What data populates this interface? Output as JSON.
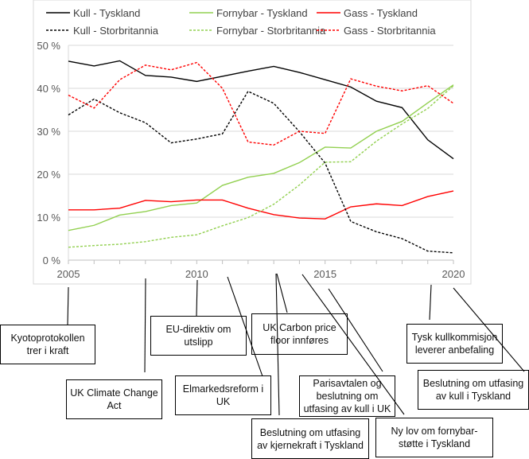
{
  "chart_data": {
    "type": "line",
    "x": [
      2005,
      2006,
      2007,
      2008,
      2009,
      2010,
      2011,
      2012,
      2013,
      2014,
      2015,
      2016,
      2017,
      2018,
      2019,
      2020
    ],
    "xticks": [
      "2005",
      "2010",
      "2015",
      "2020"
    ],
    "yticks": [
      "0 %",
      "10 %",
      "20 %",
      "30 %",
      "40 %",
      "50 %"
    ],
    "ylim": [
      0,
      50
    ],
    "grid": true,
    "legend": "top",
    "series": [
      {
        "name": "Kull - Tyskland",
        "color": "#000000",
        "dash": false,
        "values": [
          46.3,
          45.2,
          46.4,
          43.0,
          42.6,
          41.6,
          42.8,
          44.0,
          45.1,
          43.7,
          42.0,
          40.3,
          37.0,
          35.5,
          28.0,
          23.6
        ]
      },
      {
        "name": "Fornybar - Tyskland",
        "color": "#92d050",
        "dash": false,
        "values": [
          6.9,
          8.1,
          10.5,
          11.3,
          12.7,
          13.3,
          17.4,
          19.3,
          20.2,
          22.7,
          26.3,
          26.1,
          30.0,
          32.3,
          36.6,
          40.8
        ]
      },
      {
        "name": "Gass - Tyskland",
        "color": "#ff0000",
        "dash": false,
        "values": [
          11.7,
          11.7,
          12.1,
          13.9,
          13.6,
          14.0,
          14.0,
          12.1,
          10.6,
          9.8,
          9.6,
          12.4,
          13.1,
          12.7,
          14.8,
          16.1
        ]
      },
      {
        "name": "Kull - Storbritannia",
        "color": "#000000",
        "dash": true,
        "values": [
          33.8,
          37.5,
          34.3,
          32.0,
          27.3,
          28.2,
          29.4,
          39.3,
          36.5,
          29.9,
          22.6,
          9.0,
          6.6,
          5.0,
          2.1,
          1.7
        ]
      },
      {
        "name": "Fornybar - Storbritannia",
        "color": "#92d050",
        "dash": true,
        "values": [
          3.0,
          3.4,
          3.7,
          4.3,
          5.3,
          5.9,
          8.0,
          9.9,
          13.0,
          17.5,
          22.8,
          22.9,
          27.7,
          31.7,
          35.3,
          40.6
        ]
      },
      {
        "name": "Gass - Storbritannia",
        "color": "#ff0000",
        "dash": true,
        "values": [
          38.4,
          35.4,
          42.0,
          45.4,
          44.3,
          46.0,
          40.0,
          27.5,
          26.8,
          30.0,
          29.5,
          42.2,
          40.5,
          39.4,
          40.6,
          36.5
        ]
      }
    ],
    "annotations": [
      {
        "text": "Kyotoprotokollen trer i kraft",
        "year": 2005
      },
      {
        "text": "UK Climate Change Act",
        "year": 2008
      },
      {
        "text": "EU-direktiv om utslipp",
        "year": 2010
      },
      {
        "text": "Elmarkedsreform i UK",
        "year": 2011
      },
      {
        "text": "UK Carbon price floor innføres",
        "year": 2013
      },
      {
        "text": "Beslutning om utfasing av kjernekraft i Tyskland",
        "year": 2013
      },
      {
        "text": "Ny lov om fornybar-støtte i Tyskland",
        "year": 2014
      },
      {
        "text": "Parisavtalen og beslutning om utfasing av kull i UK",
        "year": 2016
      },
      {
        "text": "Tysk kullkommisjon leverer anbefaling",
        "year": 2019
      },
      {
        "text": "Beslutning om utfasing av kull i Tyskland",
        "year": 2020
      }
    ]
  }
}
